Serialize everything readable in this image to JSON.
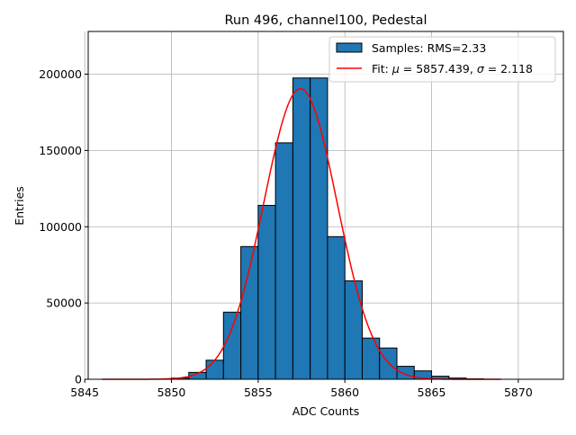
{
  "chart_data": {
    "type": "bar",
    "title": "Run 496, channel100, Pedestal",
    "xlabel": "ADC Counts",
    "ylabel": "Entries",
    "xlim": [
      5845.2,
      5872.6
    ],
    "ylim": [
      0,
      228000
    ],
    "xticks": [
      5845,
      5850,
      5855,
      5860,
      5865,
      5870
    ],
    "yticks": [
      0,
      50000,
      100000,
      150000,
      200000
    ],
    "grid": true,
    "legend_position": "top-right",
    "colors": {
      "bars": "#1f77b4",
      "bar_edge": "#000000",
      "fit": "#ff0000",
      "grid": "#b0b0b0"
    },
    "histogram": {
      "name": "Samples: RMS=2.33",
      "bin_width": 1.0,
      "bins": [
        {
          "x_start": 5850,
          "value": 800
        },
        {
          "x_start": 5851,
          "value": 4500
        },
        {
          "x_start": 5852,
          "value": 12500
        },
        {
          "x_start": 5853,
          "value": 44000
        },
        {
          "x_start": 5854,
          "value": 87000
        },
        {
          "x_start": 5855,
          "value": 114000
        },
        {
          "x_start": 5856,
          "value": 155000
        },
        {
          "x_start": 5857,
          "value": 197500
        },
        {
          "x_start": 5858,
          "value": 197500
        },
        {
          "x_start": 5859,
          "value": 93500
        },
        {
          "x_start": 5860,
          "value": 64500
        },
        {
          "x_start": 5861,
          "value": 27000
        },
        {
          "x_start": 5862,
          "value": 20500
        },
        {
          "x_start": 5863,
          "value": 8500
        },
        {
          "x_start": 5864,
          "value": 5500
        },
        {
          "x_start": 5865,
          "value": 2000
        },
        {
          "x_start": 5866,
          "value": 800
        },
        {
          "x_start": 5867,
          "value": 300
        }
      ]
    },
    "fit": {
      "name_prefix": "Fit: ",
      "mu_symbol": "μ",
      "sigma_symbol": "σ",
      "mu": 5857.439,
      "sigma": 2.118,
      "mu_text": " = 5857.439, ",
      "sigma_text": " = 2.118",
      "amplitude": 190500,
      "x_range": [
        5846,
        5869
      ]
    }
  }
}
